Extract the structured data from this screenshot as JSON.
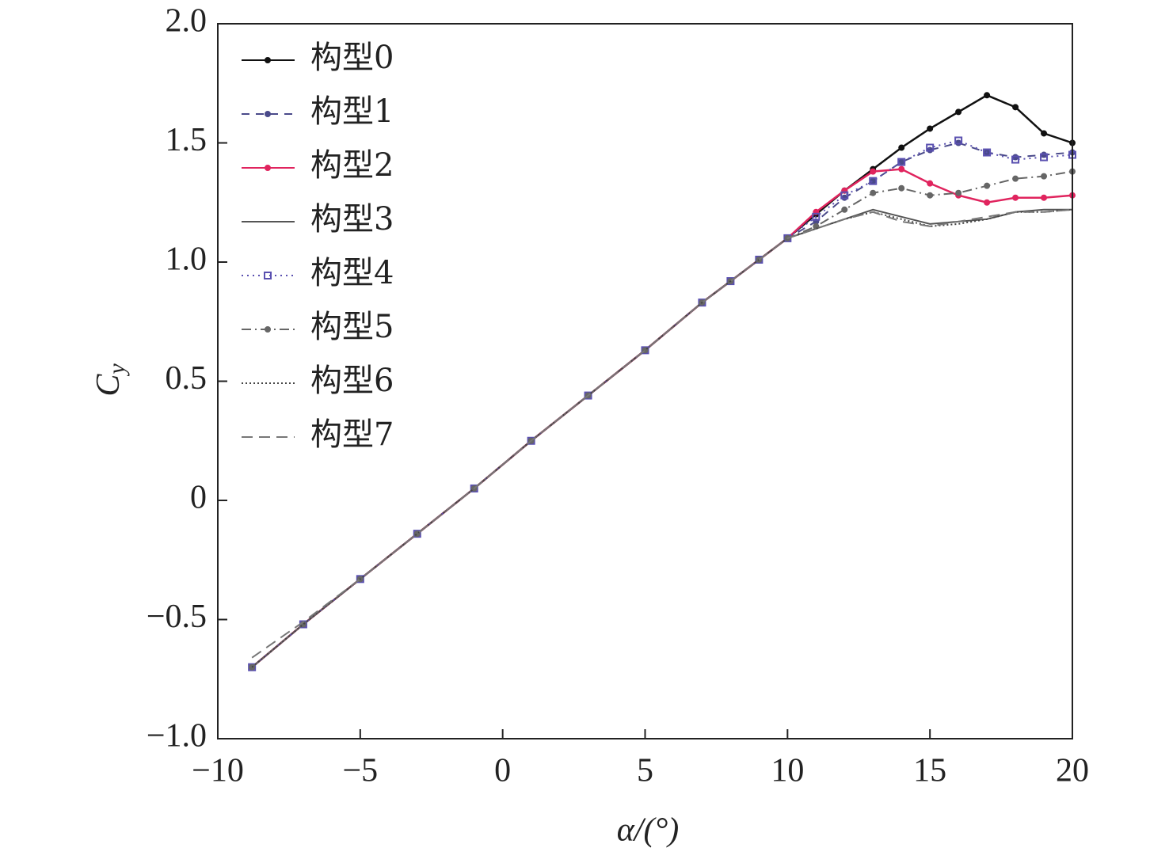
{
  "chart_data": {
    "type": "line",
    "xlabel": "α/(°)",
    "ylabel": "C",
    "ylabel_sub": "y",
    "x": [
      -8.8,
      -7,
      -5,
      -3,
      -1,
      1,
      3,
      5,
      7,
      8,
      9,
      10,
      11,
      12,
      13,
      14,
      15,
      16,
      17,
      18,
      19,
      20
    ],
    "series": [
      {
        "name": "构型0",
        "color": "#111111",
        "dash": "none",
        "marker": "circle",
        "values": [
          -0.7,
          -0.52,
          -0.33,
          -0.14,
          0.05,
          0.25,
          0.44,
          0.63,
          0.83,
          0.92,
          1.01,
          1.1,
          1.2,
          1.3,
          1.39,
          1.48,
          1.56,
          1.63,
          1.7,
          1.65,
          1.54,
          1.5
        ]
      },
      {
        "name": "构型1",
        "color": "#4a4a8a",
        "dash": "10 8",
        "marker": "circle",
        "values": [
          -0.7,
          -0.52,
          -0.33,
          -0.14,
          0.05,
          0.25,
          0.44,
          0.63,
          0.83,
          0.92,
          1.01,
          1.1,
          1.17,
          1.27,
          1.34,
          1.42,
          1.47,
          1.5,
          1.46,
          1.44,
          1.45,
          1.46
        ]
      },
      {
        "name": "构型2",
        "color": "#e0245e",
        "dash": "none",
        "marker": "circle",
        "values": [
          -0.7,
          -0.52,
          -0.33,
          -0.14,
          0.05,
          0.25,
          0.44,
          0.63,
          0.83,
          0.92,
          1.01,
          1.1,
          1.21,
          1.3,
          1.38,
          1.39,
          1.33,
          1.28,
          1.25,
          1.27,
          1.27,
          1.28
        ]
      },
      {
        "name": "构型3",
        "color": "#555555",
        "dash": "none",
        "marker": "none",
        "values": [
          -0.7,
          -0.52,
          -0.33,
          -0.14,
          0.05,
          0.25,
          0.44,
          0.63,
          0.83,
          0.92,
          1.01,
          1.1,
          1.14,
          1.18,
          1.22,
          1.19,
          1.16,
          1.17,
          1.18,
          1.21,
          1.22,
          1.22
        ]
      },
      {
        "name": "构型4",
        "color": "#5a50b0",
        "dash": "2 5",
        "marker": "square",
        "values": [
          -0.7,
          -0.52,
          -0.33,
          -0.14,
          0.05,
          0.25,
          0.44,
          0.63,
          0.83,
          0.92,
          1.01,
          1.1,
          1.19,
          1.28,
          1.34,
          1.42,
          1.48,
          1.51,
          1.46,
          1.43,
          1.44,
          1.45
        ]
      },
      {
        "name": "构型5",
        "color": "#666666",
        "dash": "12 5 2 5",
        "marker": "circle",
        "values": [
          -0.7,
          -0.52,
          -0.33,
          -0.14,
          0.05,
          0.25,
          0.44,
          0.63,
          0.83,
          0.92,
          1.01,
          1.1,
          1.15,
          1.22,
          1.29,
          1.31,
          1.28,
          1.29,
          1.32,
          1.35,
          1.36,
          1.38
        ]
      },
      {
        "name": "构型6",
        "color": "#444444",
        "dash": "2 3",
        "marker": "none",
        "values": [
          -0.7,
          -0.52,
          -0.33,
          -0.14,
          0.05,
          0.25,
          0.44,
          0.63,
          0.83,
          0.92,
          1.01,
          1.1,
          1.14,
          1.18,
          1.21,
          1.18,
          1.15,
          1.16,
          1.18,
          1.21,
          1.21,
          1.22
        ]
      },
      {
        "name": "构型7",
        "color": "#777777",
        "dash": "14 8",
        "marker": "none",
        "values": [
          -0.66,
          -0.51,
          -0.33,
          -0.14,
          0.05,
          0.25,
          0.44,
          0.63,
          0.83,
          0.92,
          1.01,
          1.1,
          1.14,
          1.18,
          1.21,
          1.17,
          1.15,
          1.17,
          1.19,
          1.21,
          1.21,
          1.22
        ]
      }
    ],
    "xlim": [
      -10,
      20
    ],
    "xticks": [
      {
        "value": -10,
        "label": "−10"
      },
      {
        "value": -5,
        "label": "−5"
      },
      0,
      5,
      10,
      15,
      20
    ],
    "ylim": [
      -1.0,
      2.0
    ],
    "yticks": [
      {
        "value": -1.0,
        "label": "−1.0"
      },
      {
        "value": -0.5,
        "label": "−0.5"
      },
      0,
      0.5,
      {
        "value": 1.0,
        "label": "1.0"
      },
      1.5,
      {
        "value": 2.0,
        "label": "2.0"
      }
    ],
    "legend": "upper left"
  }
}
